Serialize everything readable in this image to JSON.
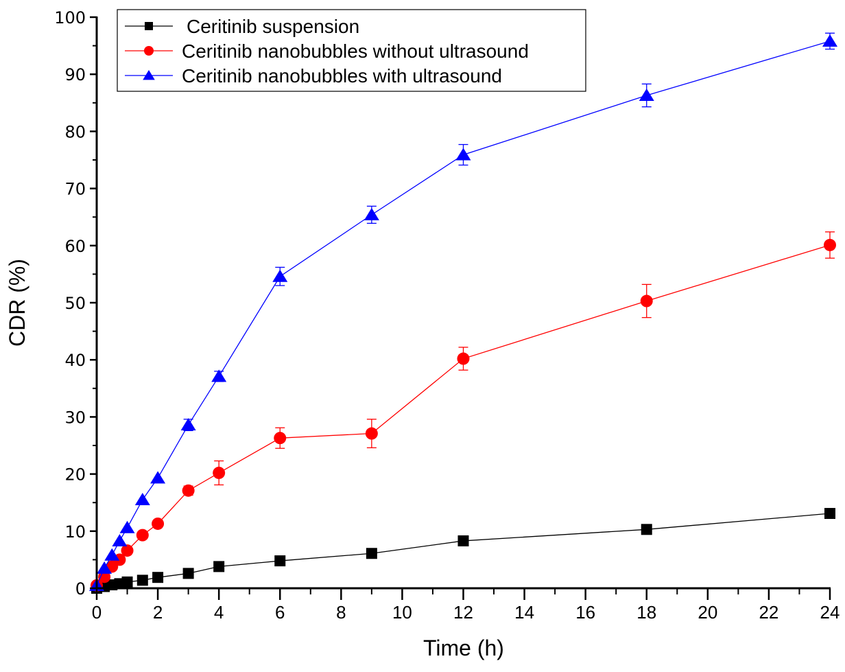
{
  "chart_data": {
    "type": "line",
    "title": "",
    "xlabel": "Time (h)",
    "ylabel": "CDR (%)",
    "xlim": [
      0,
      24
    ],
    "ylim": [
      0,
      100
    ],
    "xticks": [
      0,
      2,
      4,
      6,
      8,
      10,
      12,
      14,
      16,
      18,
      20,
      22,
      24
    ],
    "yticks": [
      0,
      10,
      20,
      30,
      40,
      50,
      60,
      70,
      80,
      90,
      100
    ],
    "grid": false,
    "legend_position": "top-left",
    "series": [
      {
        "name": "Ceritinib suspension",
        "color": "#000000",
        "marker": "square",
        "x": [
          0,
          0.25,
          0.5,
          0.75,
          1,
          1.5,
          2,
          3,
          4,
          6,
          9,
          12,
          18,
          24
        ],
        "y": [
          0,
          0.3,
          0.6,
          0.8,
          1.1,
          1.4,
          1.9,
          2.6,
          3.8,
          4.8,
          6.1,
          8.3,
          10.3,
          13.1
        ],
        "error": [
          0,
          0,
          0,
          0,
          0,
          0,
          0,
          0,
          0,
          0,
          0,
          0,
          0,
          0
        ]
      },
      {
        "name": "Ceritinib nanobubbles without ultrasound",
        "color": "#ff0000",
        "marker": "circle",
        "x": [
          0,
          0.25,
          0.5,
          0.75,
          1,
          1.5,
          2,
          3,
          4,
          6,
          9,
          12,
          18,
          24
        ],
        "y": [
          0.5,
          2.0,
          3.8,
          5.0,
          6.6,
          9.3,
          11.3,
          17.1,
          20.2,
          26.3,
          27.1,
          40.2,
          50.3,
          60.1
        ],
        "error": [
          0,
          0,
          0,
          0,
          0,
          0,
          0,
          0.8,
          2.1,
          1.8,
          2.5,
          2.0,
          2.9,
          2.3
        ]
      },
      {
        "name": "Ceritinib nanobubbles with ultrasound",
        "color": "#0000ff",
        "marker": "triangle",
        "x": [
          0,
          0.25,
          0.5,
          0.75,
          1,
          1.5,
          2,
          3,
          4,
          6,
          9,
          12,
          18,
          24
        ],
        "y": [
          0.5,
          3.5,
          5.8,
          8.3,
          10.6,
          15.5,
          19.3,
          28.6,
          37.1,
          54.6,
          65.4,
          75.9,
          86.3,
          95.8
        ],
        "error": [
          0,
          0,
          0,
          0,
          0,
          0,
          0,
          1.0,
          0.9,
          1.6,
          1.5,
          1.8,
          2.0,
          1.4
        ]
      }
    ]
  }
}
